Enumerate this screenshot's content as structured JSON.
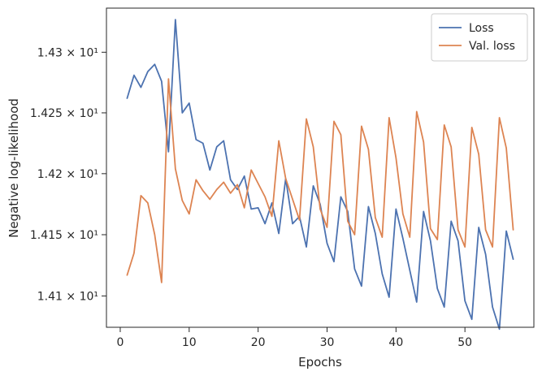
{
  "chart_data": {
    "type": "line",
    "xlabel": "Epochs",
    "ylabel": "Negative log-likelihood",
    "xlim": [
      -2.0,
      60.0
    ],
    "ylim": [
      14.0745,
      14.3365
    ],
    "x_ticks": [
      0,
      10,
      20,
      30,
      40,
      50
    ],
    "y_ticks": [
      {
        "value": 14.1,
        "label": "1.41 × 10¹"
      },
      {
        "value": 14.15,
        "label": "1.415 × 10¹"
      },
      {
        "value": 14.2,
        "label": "1.42 × 10¹"
      },
      {
        "value": 14.25,
        "label": "1.425 × 10¹"
      },
      {
        "value": 14.3,
        "label": "1.43 × 10¹"
      }
    ],
    "y_scale": "log",
    "grid": false,
    "legend_position": "top-right",
    "x": [
      1,
      2,
      3,
      4,
      5,
      6,
      7,
      8,
      9,
      10,
      11,
      12,
      13,
      14,
      15,
      16,
      17,
      18,
      19,
      20,
      21,
      22,
      23,
      24,
      25,
      26,
      27,
      28,
      29,
      30,
      31,
      32,
      33,
      34,
      35,
      36,
      37,
      38,
      39,
      40,
      41,
      42,
      43,
      44,
      45,
      46,
      47,
      48,
      49,
      50,
      51,
      52,
      53,
      54,
      55,
      56,
      57
    ],
    "series": [
      {
        "name": "Loss",
        "color": "#4c72b0",
        "values": [
          14.262,
          14.281,
          14.271,
          14.284,
          14.29,
          14.276,
          14.218,
          14.327,
          14.25,
          14.258,
          14.228,
          14.225,
          14.203,
          14.222,
          14.227,
          14.195,
          14.187,
          14.198,
          14.171,
          14.172,
          14.159,
          14.176,
          14.151,
          14.196,
          14.159,
          14.165,
          14.14,
          14.19,
          14.175,
          14.143,
          14.128,
          14.181,
          14.169,
          14.122,
          14.108,
          14.173,
          14.151,
          14.118,
          14.099,
          14.171,
          14.147,
          14.121,
          14.095,
          14.169,
          14.145,
          14.106,
          14.091,
          14.161,
          14.145,
          14.096,
          14.081,
          14.156,
          14.134,
          14.091,
          14.073,
          14.153,
          14.13
        ]
      },
      {
        "name": "Val. loss",
        "color": "#dd8452",
        "values": [
          14.117,
          14.135,
          14.182,
          14.176,
          14.15,
          14.111,
          14.278,
          14.204,
          14.178,
          14.167,
          14.195,
          14.186,
          14.179,
          14.187,
          14.193,
          14.184,
          14.191,
          14.172,
          14.203,
          14.192,
          14.181,
          14.165,
          14.227,
          14.196,
          14.179,
          14.162,
          14.245,
          14.222,
          14.171,
          14.156,
          14.243,
          14.232,
          14.161,
          14.15,
          14.239,
          14.22,
          14.164,
          14.148,
          14.246,
          14.213,
          14.167,
          14.148,
          14.251,
          14.226,
          14.155,
          14.146,
          14.24,
          14.222,
          14.154,
          14.14,
          14.238,
          14.216,
          14.154,
          14.14,
          14.246,
          14.221,
          14.154
        ]
      }
    ]
  }
}
